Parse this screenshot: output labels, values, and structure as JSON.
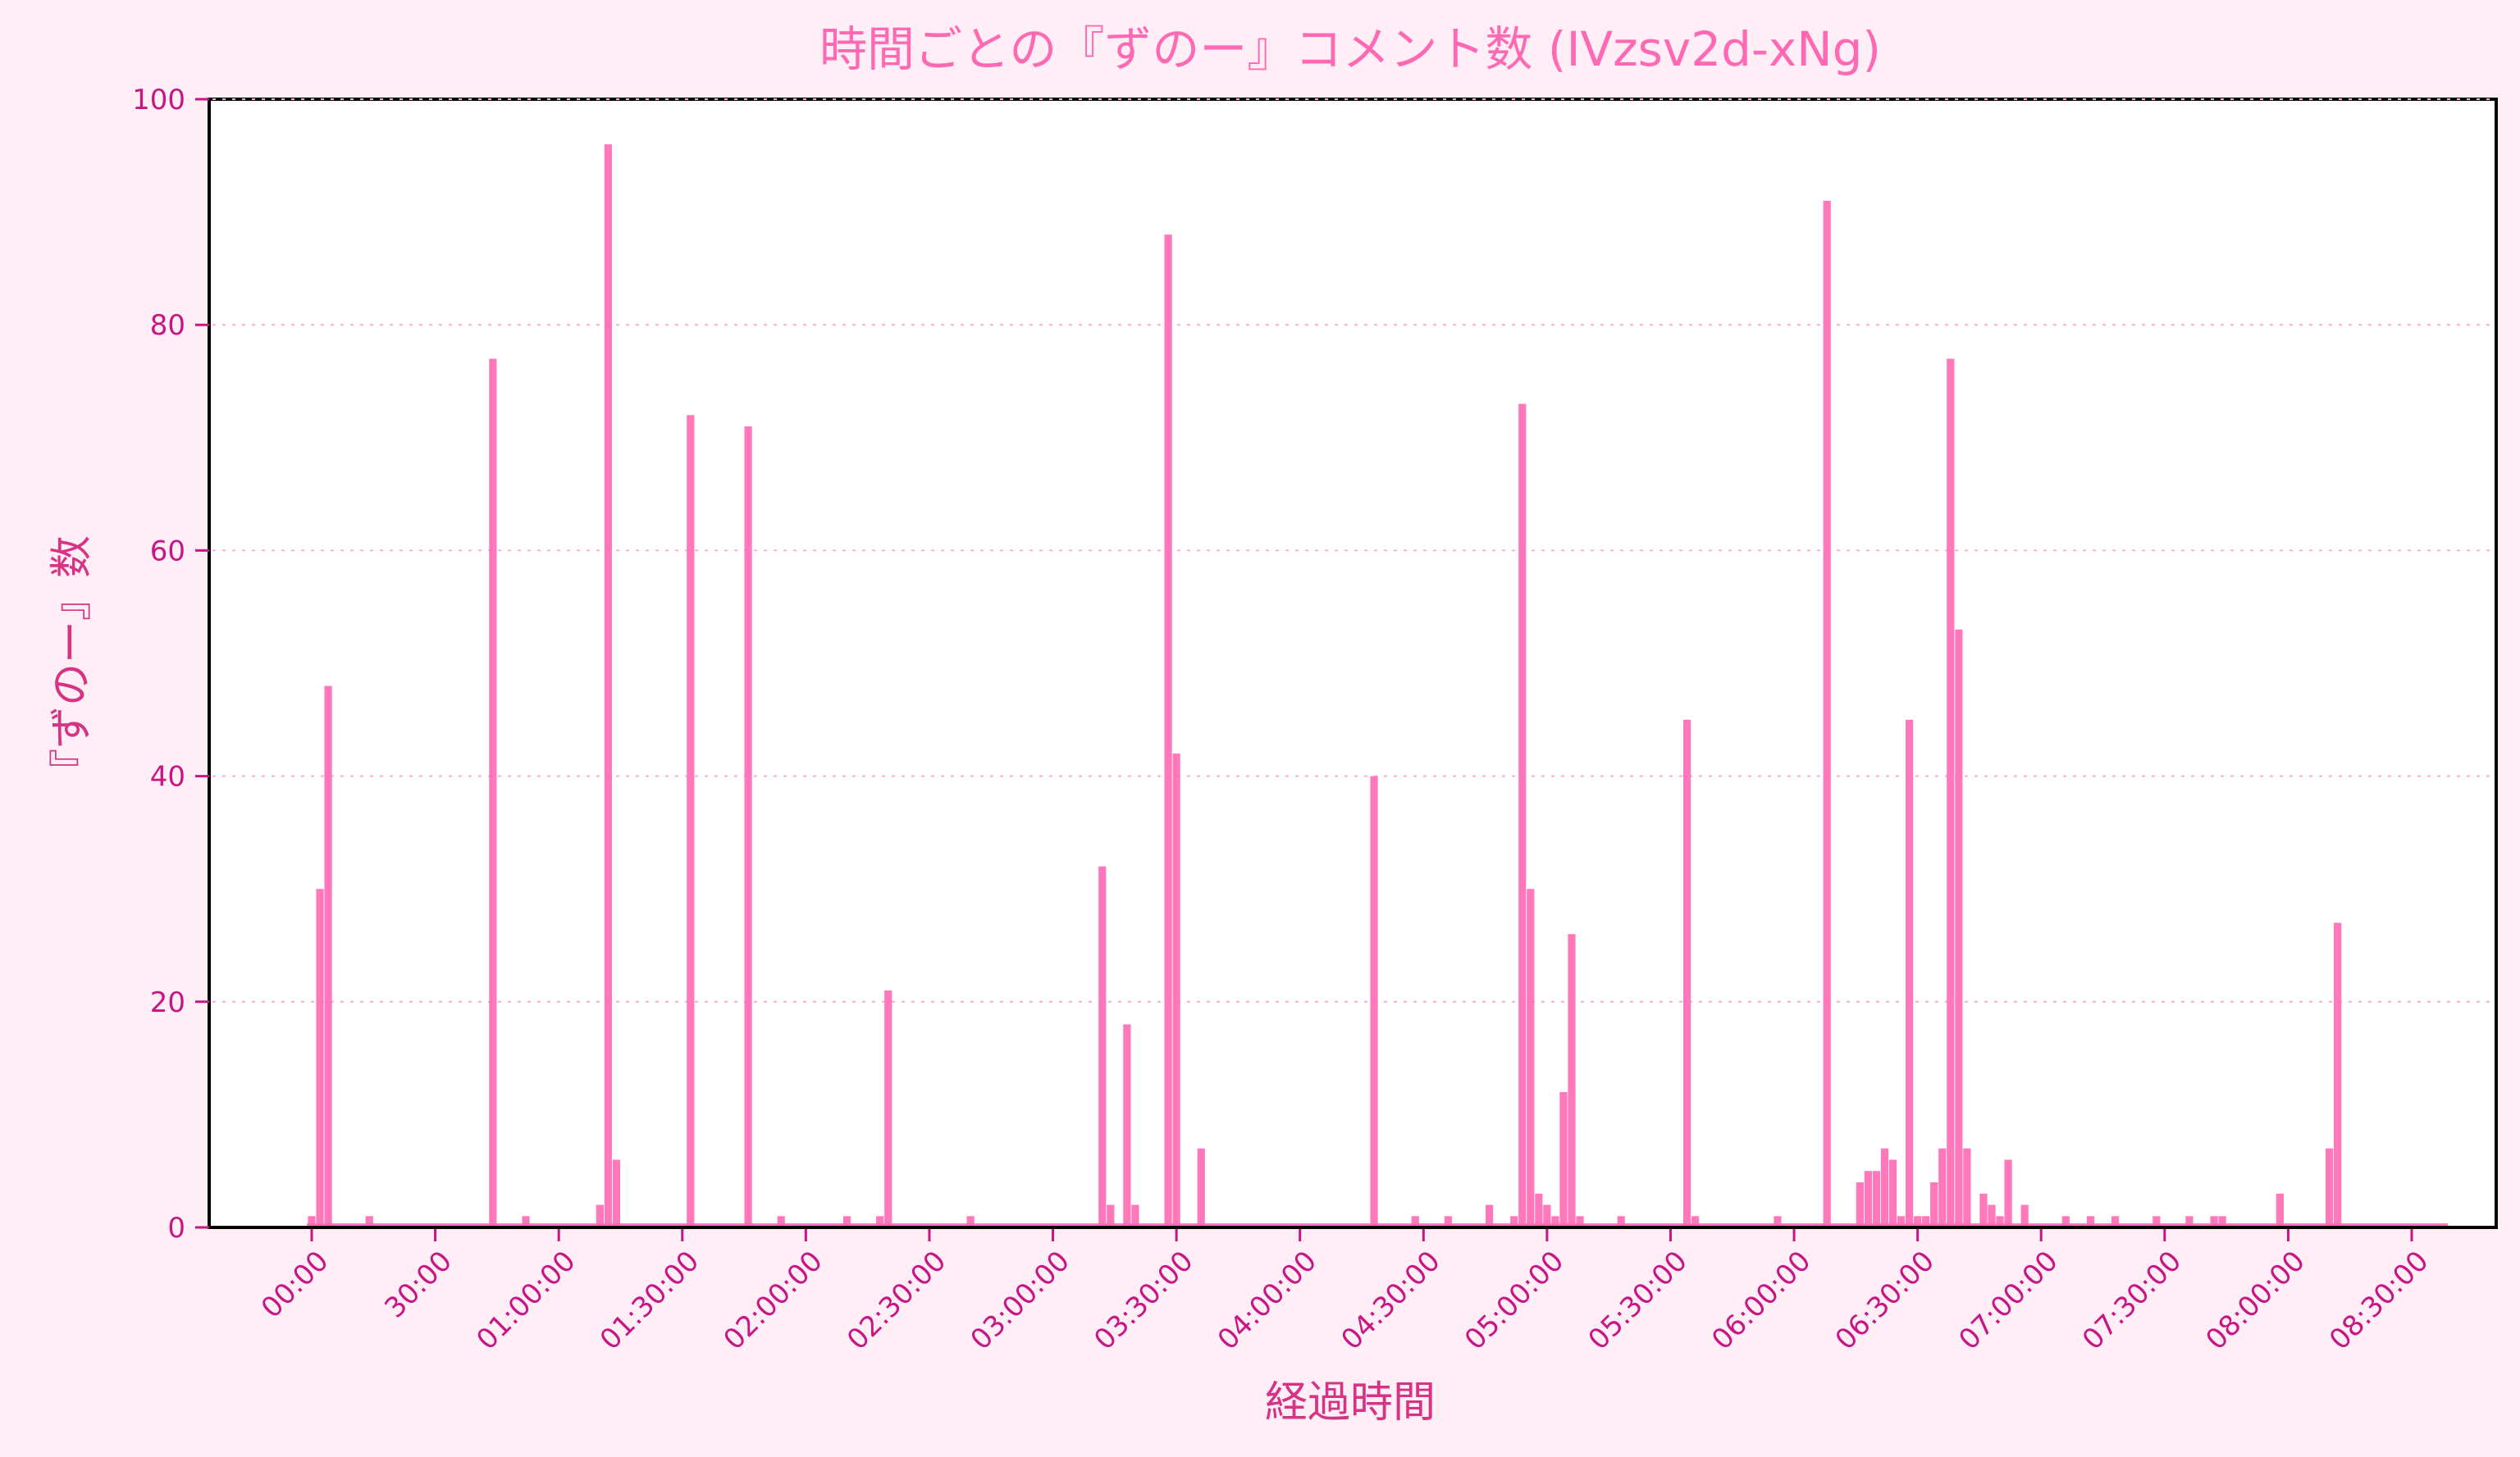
{
  "chart_data": {
    "type": "bar",
    "title": "時間ごとの『ずのー』コメント数 (IVzsv2d-xNg)",
    "xlabel": "経過時間",
    "ylabel": "『ずのー』数",
    "ylim": [
      0,
      100
    ],
    "yticks": [
      0,
      20,
      40,
      60,
      80,
      100
    ],
    "xticks": [
      "00:00",
      "30:00",
      "01:00:00",
      "01:30:00",
      "02:00:00",
      "02:30:00",
      "03:00:00",
      "03:30:00",
      "04:00:00",
      "04:30:00",
      "05:00:00",
      "05:30:00",
      "06:00:00",
      "06:30:00",
      "07:00:00",
      "07:30:00",
      "08:00:00",
      "08:30:00"
    ],
    "xtick_minutes": [
      0,
      30,
      60,
      90,
      120,
      150,
      180,
      210,
      240,
      270,
      300,
      330,
      360,
      390,
      420,
      450,
      480,
      510
    ],
    "grid": "y-dotted",
    "bar_color": "#ff69b4",
    "bin_minutes": 2,
    "points": [
      [
        0,
        1
      ],
      [
        2,
        30
      ],
      [
        4,
        48
      ],
      [
        14,
        1
      ],
      [
        44,
        77
      ],
      [
        52,
        1
      ],
      [
        70,
        2
      ],
      [
        72,
        96
      ],
      [
        74,
        6
      ],
      [
        92,
        72
      ],
      [
        106,
        71
      ],
      [
        114,
        1
      ],
      [
        130,
        1
      ],
      [
        138,
        1
      ],
      [
        140,
        21
      ],
      [
        160,
        1
      ],
      [
        192,
        32
      ],
      [
        194,
        2
      ],
      [
        198,
        18
      ],
      [
        200,
        2
      ],
      [
        208,
        88
      ],
      [
        210,
        42
      ],
      [
        216,
        7
      ],
      [
        258,
        40
      ],
      [
        268,
        1
      ],
      [
        276,
        1
      ],
      [
        286,
        2
      ],
      [
        292,
        1
      ],
      [
        294,
        73
      ],
      [
        296,
        30
      ],
      [
        298,
        3
      ],
      [
        300,
        2
      ],
      [
        302,
        1
      ],
      [
        304,
        12
      ],
      [
        306,
        26
      ],
      [
        308,
        1
      ],
      [
        318,
        1
      ],
      [
        334,
        45
      ],
      [
        336,
        1
      ],
      [
        356,
        1
      ],
      [
        368,
        91
      ],
      [
        376,
        4
      ],
      [
        378,
        5
      ],
      [
        380,
        5
      ],
      [
        382,
        7
      ],
      [
        384,
        6
      ],
      [
        386,
        1
      ],
      [
        388,
        45
      ],
      [
        390,
        1
      ],
      [
        392,
        1
      ],
      [
        394,
        4
      ],
      [
        396,
        7
      ],
      [
        398,
        77
      ],
      [
        400,
        53
      ],
      [
        402,
        7
      ],
      [
        406,
        3
      ],
      [
        408,
        2
      ],
      [
        410,
        1
      ],
      [
        412,
        6
      ],
      [
        416,
        2
      ],
      [
        426,
        1
      ],
      [
        432,
        1
      ],
      [
        438,
        1
      ],
      [
        448,
        1
      ],
      [
        456,
        1
      ],
      [
        462,
        1
      ],
      [
        464,
        1
      ],
      [
        478,
        3
      ],
      [
        490,
        7
      ],
      [
        492,
        27
      ]
    ]
  }
}
